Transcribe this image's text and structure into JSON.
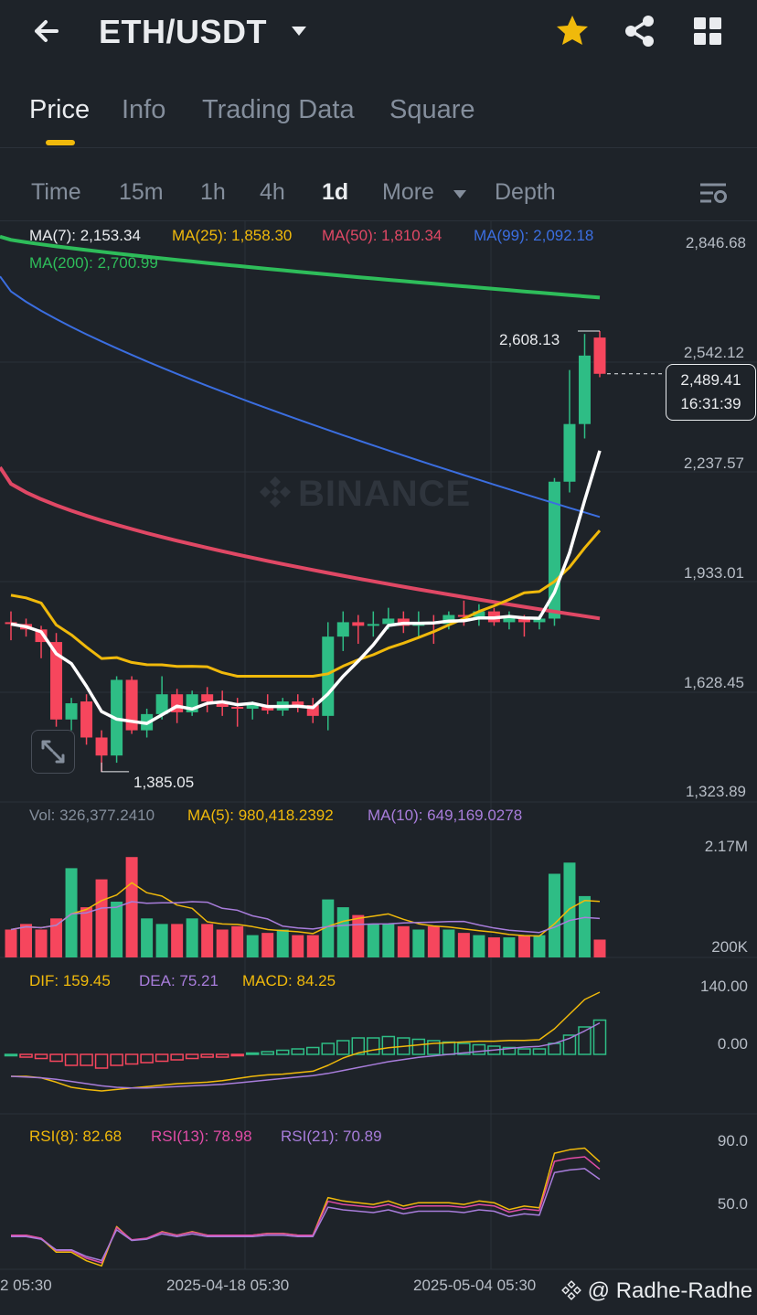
{
  "header": {
    "pair": "ETH/USDT",
    "icons": [
      "back-arrow-icon",
      "caret-down-icon",
      "star-icon",
      "share-icon",
      "grid-icon"
    ],
    "star_color": "#f0b90b"
  },
  "tabs": [
    {
      "label": "Price",
      "active": true
    },
    {
      "label": "Info",
      "active": false
    },
    {
      "label": "Trading Data",
      "active": false
    },
    {
      "label": "Square",
      "active": false
    }
  ],
  "intervals": [
    {
      "label": "Time"
    },
    {
      "label": "15m"
    },
    {
      "label": "1h"
    },
    {
      "label": "4h"
    },
    {
      "label": "1d",
      "active": true
    },
    {
      "label": "More"
    },
    {
      "label": "Depth"
    }
  ],
  "ma_legend": {
    "ma7": "MA(7): 2,153.34",
    "ma25": "MA(25): 1,858.30",
    "ma50": "MA(50): 1,810.34",
    "ma99": "MA(99): 2,092.18",
    "ma200": "MA(200): 2,700.99"
  },
  "price_axis": [
    "2,846.68",
    "2,542.12",
    "2,237.57",
    "1,933.01",
    "1,628.45",
    "1,323.89"
  ],
  "price_annotations": {
    "high": "2,608.13",
    "low": "1,385.05"
  },
  "current_price": {
    "price": "2,489.41",
    "countdown": "16:31:39"
  },
  "watermark": "BINANCE",
  "volume": {
    "legend_vol": "Vol: 326,377.2410",
    "legend_ma5": "MA(5): 980,418.2392",
    "legend_ma10": "MA(10): 649,169.0278",
    "axis": [
      "2.17M",
      "200K"
    ]
  },
  "macd": {
    "dif": "DIF: 159.45",
    "dea": "DEA: 75.21",
    "macd": "MACD: 84.25",
    "axis": [
      "140.00",
      "0.00"
    ]
  },
  "rsi": {
    "rsi8": "RSI(8): 82.68",
    "rsi13": "RSI(13): 78.98",
    "rsi21": "RSI(21): 70.89",
    "axis": [
      "90.0",
      "50.0"
    ]
  },
  "x_axis": [
    "2 05:30",
    "2025-04-18 05:30",
    "2025-05-04 05:30"
  ],
  "credit": "@ Radhe-Radhe",
  "colors": {
    "up": "#2ebd85",
    "down": "#f6465d",
    "ma7": "#ffffff",
    "ma25": "#f0b90b",
    "ma50": "#e04865",
    "ma99": "#3b6ee0",
    "ma200": "#2ebd5a"
  },
  "chart_data": {
    "type": "candlestick",
    "interval": "1d",
    "candles_ohlc": [
      [
        1800,
        1830,
        1750,
        1795
      ],
      [
        1795,
        1810,
        1760,
        1780
      ],
      [
        1780,
        1790,
        1700,
        1745
      ],
      [
        1745,
        1770,
        1510,
        1530
      ],
      [
        1530,
        1590,
        1500,
        1575
      ],
      [
        1580,
        1600,
        1460,
        1480
      ],
      [
        1480,
        1500,
        1385,
        1430
      ],
      [
        1430,
        1650,
        1410,
        1640
      ],
      [
        1640,
        1650,
        1490,
        1500
      ],
      [
        1500,
        1560,
        1480,
        1545
      ],
      [
        1545,
        1650,
        1530,
        1600
      ],
      [
        1600,
        1615,
        1520,
        1550
      ],
      [
        1550,
        1610,
        1540,
        1600
      ],
      [
        1600,
        1620,
        1550,
        1580
      ],
      [
        1580,
        1610,
        1540,
        1565
      ],
      [
        1565,
        1590,
        1510,
        1560
      ],
      [
        1560,
        1580,
        1530,
        1570
      ],
      [
        1570,
        1600,
        1545,
        1555
      ],
      [
        1555,
        1590,
        1540,
        1580
      ],
      [
        1580,
        1600,
        1550,
        1570
      ],
      [
        1570,
        1590,
        1520,
        1540
      ],
      [
        1540,
        1800,
        1500,
        1760
      ],
      [
        1760,
        1830,
        1720,
        1800
      ],
      [
        1800,
        1820,
        1740,
        1790
      ],
      [
        1790,
        1830,
        1760,
        1795
      ],
      [
        1795,
        1840,
        1780,
        1810
      ],
      [
        1810,
        1830,
        1770,
        1790
      ],
      [
        1790,
        1830,
        1760,
        1800
      ],
      [
        1800,
        1820,
        1740,
        1795
      ],
      [
        1795,
        1830,
        1780,
        1820
      ],
      [
        1820,
        1860,
        1790,
        1815
      ],
      [
        1815,
        1850,
        1790,
        1830
      ],
      [
        1830,
        1840,
        1790,
        1800
      ],
      [
        1800,
        1830,
        1780,
        1815
      ],
      [
        1815,
        1820,
        1760,
        1800
      ],
      [
        1800,
        1820,
        1780,
        1810
      ],
      [
        1810,
        2200,
        1790,
        2190
      ],
      [
        2190,
        2500,
        2160,
        2350
      ],
      [
        2350,
        2600,
        2310,
        2540
      ],
      [
        2590,
        2608.13,
        2480,
        2489.41
      ]
    ],
    "ma_current": {
      "MA7": 2153.34,
      "MA25": 1858.3,
      "MA50": 1810.34,
      "MA99": 2092.18,
      "MA200": 2700.99
    },
    "y_range": [
      1323.89,
      2846.68
    ],
    "high_label": 2608.13,
    "low_label": 1385.05,
    "volume_current": 326377.241,
    "volume_ma5": 980418.2392,
    "volume_ma10": 649169.0278,
    "macd_current": {
      "DIF": 159.45,
      "DEA": 75.21,
      "MACD": 84.25
    },
    "rsi_current": {
      "RSI8": 82.68,
      "RSI13": 78.98,
      "RSI21": 70.89
    }
  }
}
